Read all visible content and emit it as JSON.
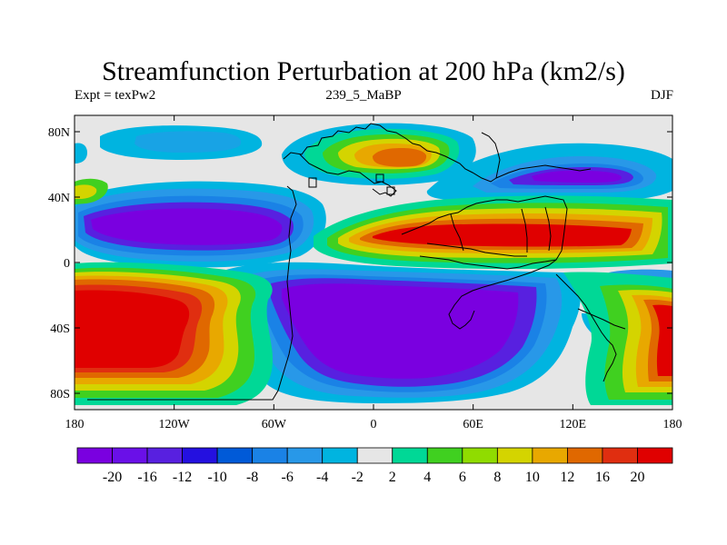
{
  "title": "Streamfunction Perturbation at 200 hPa (km2/s)",
  "subtitle_left": "Expt = texPw2",
  "subtitle_center": "239_5_MaBP",
  "subtitle_right": "DJF",
  "colors": {
    "no_data": "#e6e6e6",
    "land_outline": "#000000"
  },
  "map": {
    "projection": "cylindrical-equidistant",
    "lon_range": [
      -180,
      180
    ],
    "lat_range": [
      -90,
      90
    ],
    "lon_ticks": [
      {
        "value": -180,
        "label": "180"
      },
      {
        "value": -120,
        "label": "120W"
      },
      {
        "value": -60,
        "label": "60W"
      },
      {
        "value": 0,
        "label": "0"
      },
      {
        "value": 60,
        "label": "60E"
      },
      {
        "value": 120,
        "label": "120E"
      },
      {
        "value": 180,
        "label": "180"
      }
    ],
    "lat_ticks": [
      {
        "value": 80,
        "label": "80N"
      },
      {
        "value": 40,
        "label": "40N"
      },
      {
        "value": 0,
        "label": "0"
      },
      {
        "value": -40,
        "label": "40S"
      },
      {
        "value": -80,
        "label": "80S"
      }
    ]
  },
  "colorbar": {
    "colors": [
      "#7a00e0",
      "#6a10e8",
      "#5820e0",
      "#2410e0",
      "#005ad8",
      "#1a82e6",
      "#2898e8",
      "#00b4e0",
      "#e6e6e6",
      "#00d896",
      "#40d020",
      "#90dc00",
      "#d4d400",
      "#e8a800",
      "#e06800",
      "#e02e10",
      "#e00000"
    ],
    "labels": [
      "-20",
      "-16",
      "-12",
      "-10",
      "-8",
      "-6",
      "-4",
      "-2",
      "2",
      "4",
      "6",
      "8",
      "10",
      "12",
      "16",
      "20"
    ]
  }
}
